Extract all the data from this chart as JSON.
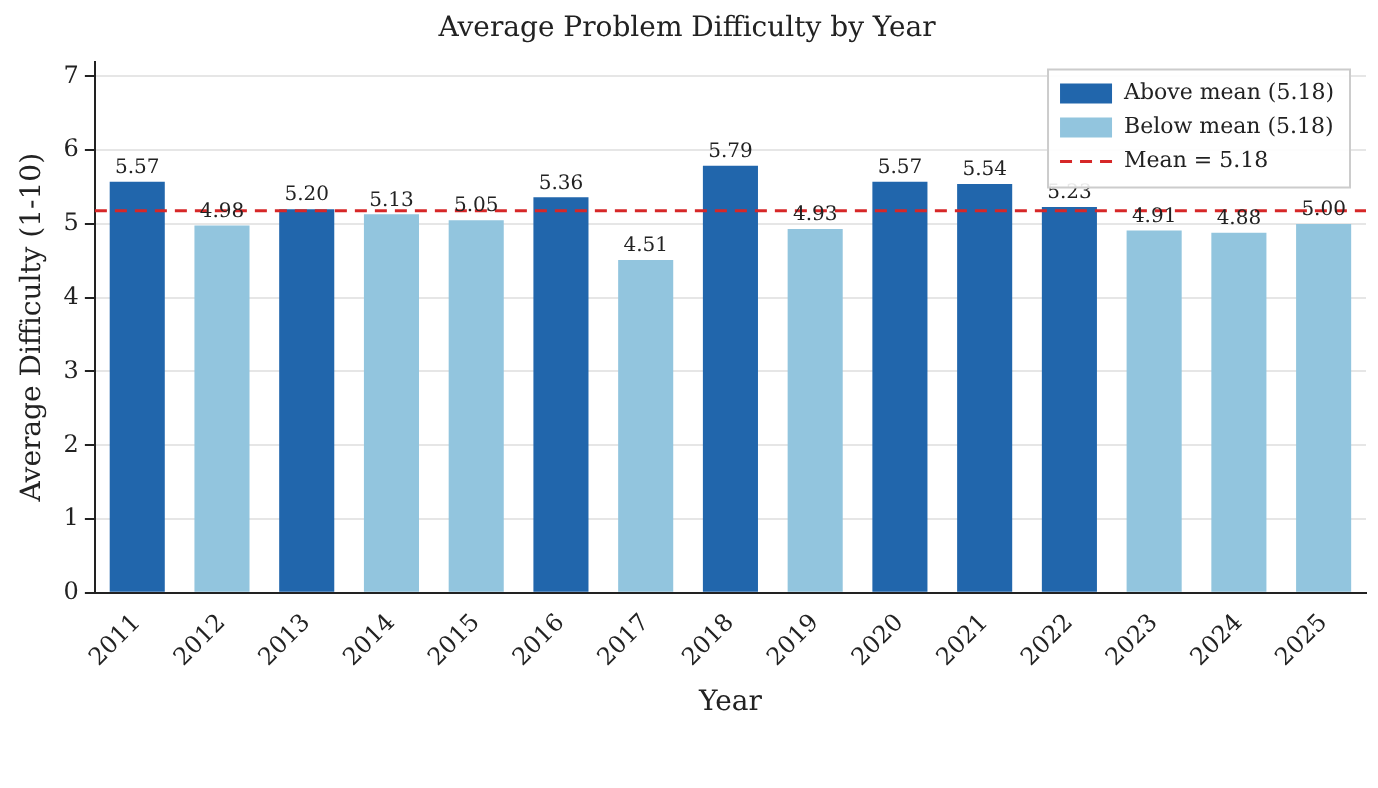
{
  "chart_data": {
    "type": "bar",
    "title": "Average Problem Difficulty by Year",
    "xlabel": "Year",
    "ylabel": "Average Difficulty (1-10)",
    "categories": [
      "2011",
      "2012",
      "2013",
      "2014",
      "2015",
      "2016",
      "2017",
      "2018",
      "2019",
      "2020",
      "2021",
      "2022",
      "2023",
      "2024",
      "2025"
    ],
    "series": [
      {
        "name": "Above mean (5.18)",
        "color": "#2166ac",
        "values": [
          5.57,
          null,
          5.2,
          null,
          null,
          5.36,
          null,
          5.79,
          null,
          5.57,
          5.54,
          5.23,
          null,
          null,
          null
        ],
        "value_labels": [
          "5.57",
          null,
          "5.20",
          null,
          null,
          "5.36",
          null,
          "5.79",
          null,
          "5.57",
          "5.54",
          "5.23",
          null,
          null,
          null
        ]
      },
      {
        "name": "Below mean (5.18)",
        "color": "#92c5de",
        "values": [
          null,
          4.98,
          null,
          5.13,
          5.05,
          null,
          4.51,
          null,
          4.93,
          null,
          null,
          null,
          4.91,
          4.88,
          5.0
        ],
        "value_labels": [
          null,
          "4.98",
          null,
          "5.13",
          "5.05",
          null,
          "4.51",
          null,
          "4.93",
          null,
          null,
          null,
          "4.91",
          "4.88",
          "5.00"
        ]
      }
    ],
    "ref_lines": [
      {
        "axis": "y",
        "value": 5.18,
        "label": "Mean = 5.18",
        "color": "#d62728",
        "line_style": "dashed"
      }
    ],
    "ylim": [
      0,
      7.2
    ],
    "yticks": [
      0,
      1,
      2,
      3,
      4,
      5,
      6,
      7
    ],
    "grid": "y",
    "legend": "top right"
  }
}
